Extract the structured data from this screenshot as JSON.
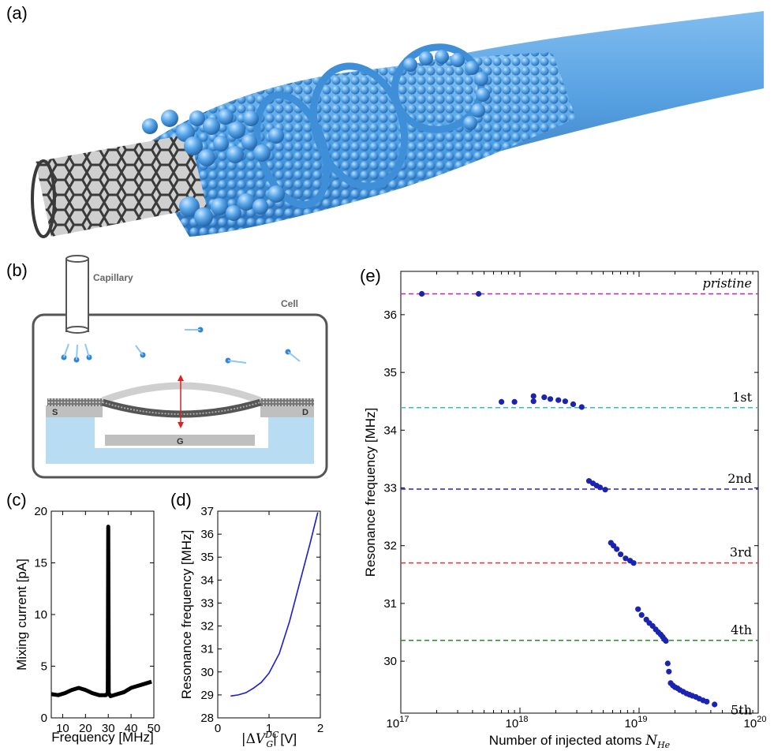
{
  "panel_labels": {
    "a": "(a)",
    "b": "(b)",
    "c": "(c)",
    "d": "(d)",
    "e": "(e)"
  },
  "schematic": {
    "capillary_label": "Capillary",
    "cell_label": "Cell",
    "source_label": "S",
    "drain_label": "D",
    "gate_label": "G"
  },
  "colors": {
    "helium_blue": "#4a9fe6",
    "carbon_dark": "#3a3a3a",
    "substrate_blue": "#b8dcf2",
    "electrode_gray": "#bfbfbf",
    "marker_blue": "#1a24b0",
    "arrow_red": "#e02020"
  },
  "chart_data": [
    {
      "panel": "c",
      "type": "line",
      "xlabel": "Frequency [MHz]",
      "ylabel": "Mixing current [pA]",
      "xlim": [
        5,
        50
      ],
      "ylim": [
        0,
        20
      ],
      "xticks": [
        "10",
        "20",
        "30",
        "40",
        "50"
      ],
      "yticks": [
        "0",
        "5",
        "10",
        "15",
        "20"
      ],
      "series": [
        {
          "color": "#000000",
          "x": [
            5,
            8,
            11,
            14,
            17,
            20,
            23,
            26,
            29,
            29.8,
            30,
            30.2,
            31,
            34,
            37,
            40,
            43,
            46,
            49
          ],
          "y": [
            2.3,
            2.2,
            2.4,
            2.7,
            2.9,
            2.7,
            2.4,
            2.2,
            2.2,
            2.4,
            18.5,
            2.4,
            2.1,
            2.3,
            2.5,
            2.9,
            3.1,
            3.3,
            3.5
          ]
        }
      ]
    },
    {
      "panel": "d",
      "type": "line",
      "xlabel": "|ΔV_G^DC| [V]",
      "ylabel": "Resonance frequency [MHz]",
      "xlim": [
        0,
        2
      ],
      "ylim": [
        28,
        37
      ],
      "xticks": [
        "0",
        "1",
        "2"
      ],
      "yticks": [
        "28",
        "29",
        "30",
        "31",
        "32",
        "33",
        "34",
        "35",
        "36",
        "37"
      ],
      "series": [
        {
          "color": "#1a1ad0",
          "x": [
            0.25,
            0.4,
            0.55,
            0.7,
            0.85,
            1.0,
            1.2,
            1.4,
            1.6,
            1.8,
            1.95
          ],
          "y": [
            28.95,
            29.0,
            29.1,
            29.3,
            29.55,
            29.95,
            30.8,
            32.2,
            33.9,
            35.6,
            36.95
          ]
        }
      ]
    },
    {
      "panel": "e",
      "type": "scatter",
      "xlabel": "Number of injected atoms N_He",
      "ylabel": "Resonance frequency [MHz]",
      "xscale": "log",
      "xlim": [
        1e+17,
        1e+20
      ],
      "ylim": [
        29.1,
        36.75
      ],
      "x_tick_labels": [
        "10^17",
        "10^18",
        "10^19",
        "10^20"
      ],
      "yticks": [
        "30",
        "31",
        "32",
        "33",
        "34",
        "35",
        "36"
      ],
      "reference_lines": [
        {
          "label": "pristine",
          "y": 36.36,
          "color": "#c020c0"
        },
        {
          "label": "1st",
          "y": 34.39,
          "color": "#30c0c0"
        },
        {
          "label": "2nd",
          "y": 32.98,
          "color": "#2020d0"
        },
        {
          "label": "3rd",
          "y": 31.7,
          "color": "#f03030"
        },
        {
          "label": "4th",
          "y": 30.36,
          "color": "#209020"
        },
        {
          "label": "5th",
          "y": 29.2,
          "color": "#000000"
        }
      ],
      "series": [
        {
          "color": "#1a24b0",
          "x": [
            1.5e+17,
            4.5e+17,
            7e+17,
            9e+17,
            1.3e+18,
            1.3e+18,
            1.6e+18,
            1.8e+18,
            2.1e+18,
            2.4e+18,
            2.8e+18,
            3.3e+18,
            3.8e+18,
            4.1e+18,
            4.4e+18,
            4.7e+18,
            5.2e+18,
            5.8e+18,
            6.1e+18,
            6.5e+18,
            7e+18,
            7.7e+18,
            8.4e+18,
            9e+18,
            9.8e+18,
            1.05e+19,
            1.15e+19,
            1.22e+19,
            1.3e+19,
            1.38e+19,
            1.45e+19,
            1.52e+19,
            1.58e+19,
            1.63e+19,
            1.68e+19,
            1.74e+19,
            1.78e+19,
            1.84e+19,
            1.92e+19,
            2e+19,
            2.1e+19,
            2.2e+19,
            2.35e+19,
            2.5e+19,
            2.65e+19,
            2.8e+19,
            3e+19,
            3.2e+19,
            3.45e+19,
            3.7e+19,
            4.3e+19
          ],
          "y": [
            36.36,
            36.36,
            34.49,
            34.49,
            34.5,
            34.59,
            34.57,
            34.54,
            34.52,
            34.5,
            34.45,
            34.4,
            33.12,
            33.08,
            33.04,
            33.01,
            32.97,
            32.05,
            32.0,
            31.94,
            31.85,
            31.78,
            31.74,
            31.7,
            30.9,
            30.8,
            30.72,
            30.66,
            30.61,
            30.55,
            30.5,
            30.46,
            30.42,
            30.38,
            30.35,
            29.96,
            29.82,
            29.62,
            29.58,
            29.55,
            29.53,
            29.5,
            29.47,
            29.44,
            29.42,
            29.4,
            29.38,
            29.35,
            29.32,
            29.3,
            29.25
          ]
        }
      ]
    }
  ]
}
